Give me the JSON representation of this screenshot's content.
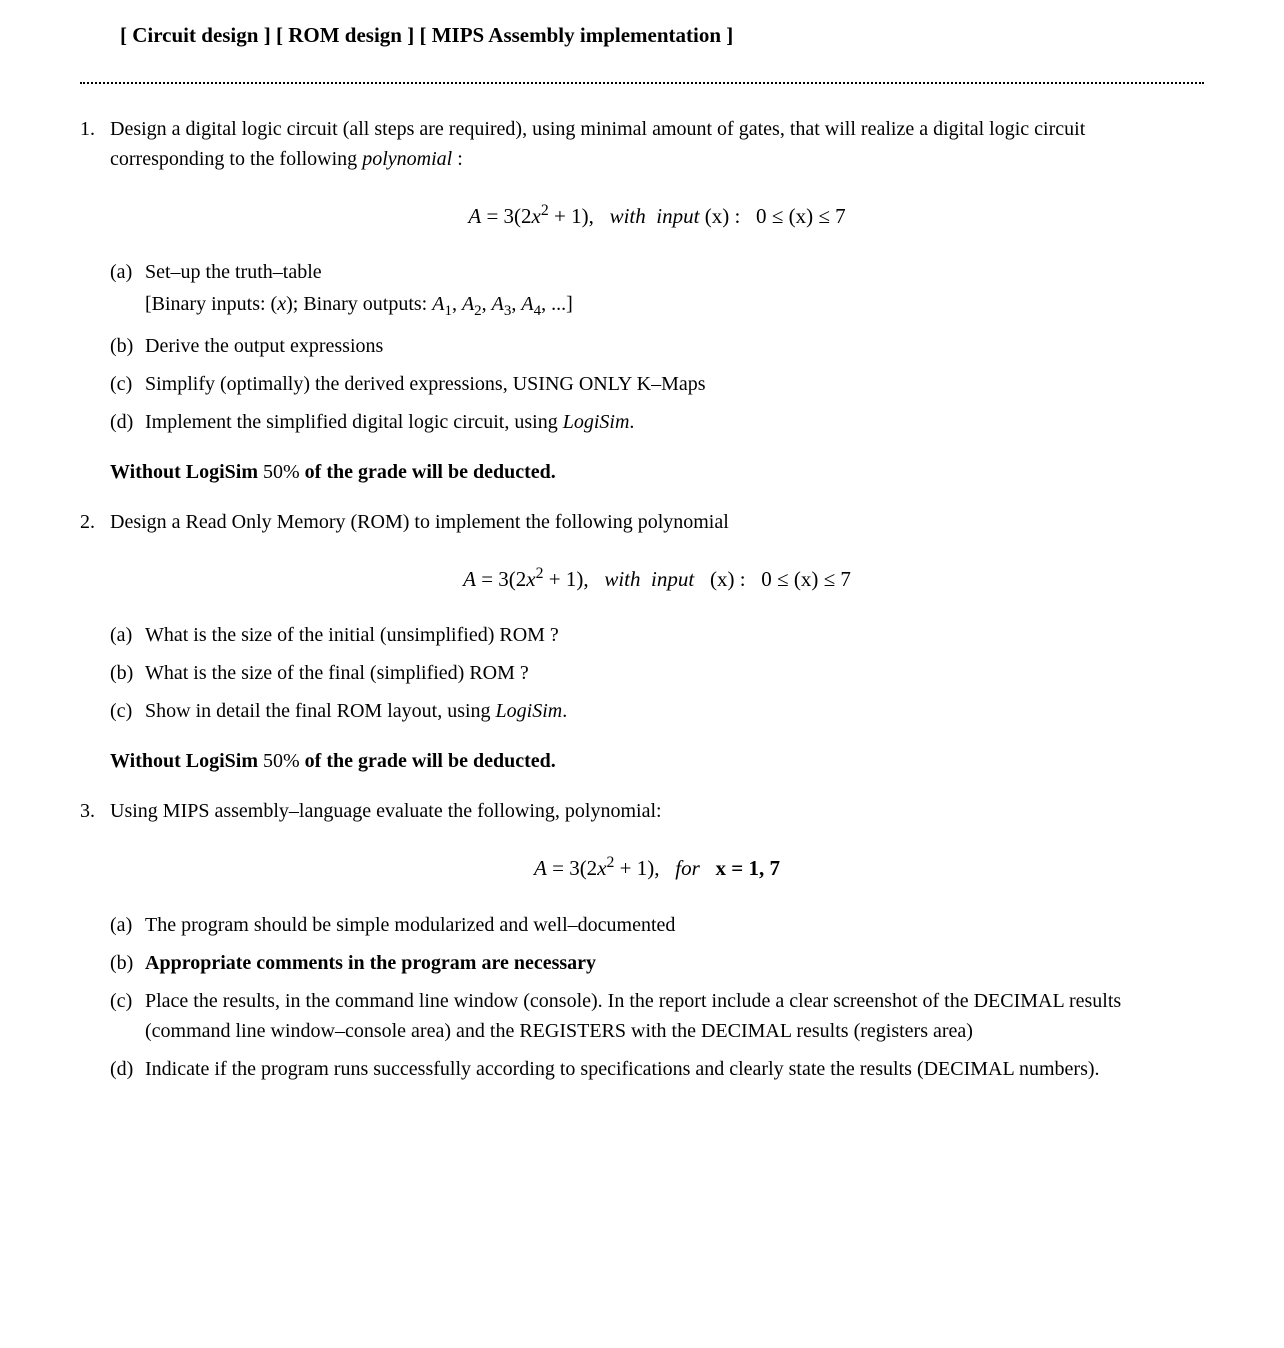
{
  "header": {
    "tag1": "[ Circuit design ]",
    "tag2": "[ ROM design ]",
    "tag3": "[ MIPS Assembly implementation ]"
  },
  "q1": {
    "text_part1": "Design a digital logic circuit (all steps are required), using minimal amount of gates, that will realize a digital logic circuit corresponding to the following ",
    "text_italic": "polynomial",
    "text_part2": " :",
    "equation": {
      "lhs": "A",
      "eq": " = ",
      "rhs_num": "3(2",
      "rhs_var": "x",
      "rhs_exp": "2",
      "rhs_end": " + 1),",
      "with": "   with  input ",
      "input_var": "(x)",
      "colon": " :   ",
      "range_lo": "0 ≤ ",
      "range_var": "(x)",
      "range_hi": " ≤ 7"
    },
    "a": {
      "text": "Set–up the truth–table",
      "detail_open": "[Binary inputs: (",
      "detail_var": "x",
      "detail_mid": "); Binary outputs: ",
      "detail_a1": "A",
      "detail_s1": "1",
      "detail_c1": ", ",
      "detail_a2": "A",
      "detail_s2": "2",
      "detail_c2": ", ",
      "detail_a3": "A",
      "detail_s3": "3",
      "detail_c3": ", ",
      "detail_a4": "A",
      "detail_s4": "4",
      "detail_end": ", ...]"
    },
    "b": "Derive the output expressions",
    "c": "Simplify (optimally) the derived expressions, USING ONLY K–Maps",
    "d_part1": "Implement the simplified digital logic circuit, using ",
    "d_italic": "LogiSim",
    "d_part2": ".",
    "warning_part1": "Without LogiSim ",
    "warning_pct": "50%",
    "warning_part2": " of the grade will be deducted."
  },
  "q2": {
    "text": "Design a Read Only Memory (ROM) to implement the following polynomial",
    "equation": {
      "lhs": "A",
      "eq": " = ",
      "rhs_num": "3(2",
      "rhs_var": "x",
      "rhs_exp": "2",
      "rhs_end": " + 1),",
      "with": "   with  input   ",
      "input_var": "(x)",
      "colon": " :   ",
      "range_lo": "0 ≤ ",
      "range_var": "(x)",
      "range_hi": " ≤ 7"
    },
    "a": "What is the size of the initial (unsimplified) ROM ?",
    "b": "What is the size of the final (simplified) ROM ?",
    "c_part1": "Show in detail the final ROM layout, using ",
    "c_italic": "LogiSim",
    "c_part2": ".",
    "warning_part1": "Without LogiSim ",
    "warning_pct": "50%",
    "warning_part2": " of the grade will be deducted."
  },
  "q3": {
    "text": "Using MIPS assembly–language evaluate the following, polynomial:",
    "equation": {
      "lhs": "A",
      "eq": " = ",
      "rhs_num": "3(2",
      "rhs_var": "x",
      "rhs_exp": "2",
      "rhs_end": " + 1),",
      "for": "   for   ",
      "x_label": "x",
      "x_eq": " = ",
      "x_vals": "1, 7"
    },
    "a": "The program should be simple modularized and well–documented",
    "b": "Appropriate comments in the program are necessary",
    "c": "Place the results, in the command line window (console). In the report include a clear screenshot of the DECIMAL results (command line window–console area) and the REGISTERS with the DECIMAL results (registers area)",
    "d": "Indicate if the program runs successfully according to specifications and clearly state the results (DECIMAL numbers)."
  },
  "colors": {
    "text": "#000000",
    "background": "#ffffff"
  },
  "typography": {
    "body_fontsize": 20,
    "header_fontsize": 21,
    "equation_fontsize": 21,
    "font_family": "Times New Roman"
  }
}
